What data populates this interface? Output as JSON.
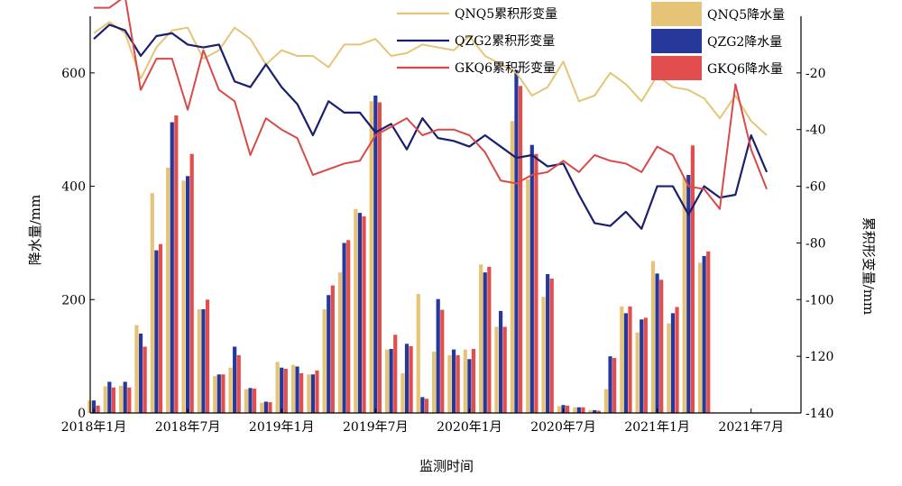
{
  "chart_data": {
    "type": "bar+line",
    "title": "",
    "xlabel": "监测时间",
    "ylabel_left": "降水量/mm",
    "ylabel_right": "累积形变量/mm",
    "ylim_left": [
      0,
      700
    ],
    "ylim_right": [
      -140,
      0
    ],
    "yticks_left": [
      0,
      200,
      400,
      600
    ],
    "yticks_right": [
      -140,
      -120,
      -100,
      -80,
      -60,
      -40,
      -20
    ],
    "x_tick_labels": [
      "2018年1月",
      "2018年7月",
      "2019年1月",
      "2019年7月",
      "2020年1月",
      "2020年7月",
      "2021年1月",
      "2021年7月"
    ],
    "x_tick_index": [
      0,
      6,
      12,
      18,
      24,
      30,
      36,
      42
    ],
    "months": 44,
    "grid": false,
    "legend_position": "top-right",
    "bar_series": [
      {
        "name": "QNQ5降水量",
        "color": "#E6C477",
        "values": [
          22,
          47,
          48,
          155,
          388,
          433,
          410,
          183,
          65,
          80,
          42,
          18,
          90,
          85,
          68,
          183,
          248,
          360,
          550,
          112,
          70,
          210,
          108,
          102,
          112,
          262,
          152,
          515,
          412,
          205,
          12,
          10,
          5,
          42,
          188,
          142,
          268,
          158,
          415,
          265,
          0,
          0,
          0,
          0
        ]
      },
      {
        "name": "QZG2降水量",
        "color": "#26389A",
        "values": [
          22,
          55,
          55,
          140,
          287,
          513,
          418,
          183,
          68,
          117,
          44,
          20,
          80,
          82,
          68,
          208,
          300,
          353,
          560,
          113,
          122,
          28,
          201,
          112,
          95,
          248,
          180,
          605,
          473,
          245,
          14,
          10,
          5,
          100,
          176,
          165,
          246,
          176,
          420,
          277,
          0,
          0,
          0,
          0
        ]
      },
      {
        "name": "GKQ6降水量",
        "color": "#E24E4E",
        "values": [
          13,
          45,
          45,
          117,
          298,
          525,
          457,
          200,
          68,
          102,
          43,
          19,
          78,
          70,
          75,
          225,
          305,
          347,
          548,
          138,
          118,
          25,
          182,
          102,
          113,
          258,
          152,
          577,
          457,
          237,
          13,
          10,
          4,
          97,
          188,
          168,
          235,
          187,
          472,
          285,
          0,
          0,
          0,
          0
        ]
      }
    ],
    "line_series": [
      {
        "name": "QNQ5累积形变量",
        "color": "#E6C477",
        "values": [
          -6,
          -2,
          -6,
          -22,
          -11,
          -5,
          -4,
          -15,
          -12,
          -4,
          -8,
          -17,
          -12,
          -14,
          -14,
          -18,
          -10,
          -10,
          -8,
          -14,
          -13,
          -10,
          -11,
          -12,
          -7,
          -14,
          -17,
          -20,
          -28,
          -25,
          -16,
          -30,
          -28,
          -20,
          -24,
          -30,
          -21,
          -25,
          -26,
          -29,
          -36,
          -28,
          -37,
          -42
        ]
      },
      {
        "name": "QZG2累积形变量",
        "color": "#1A1F6E",
        "values": [
          -8,
          -3,
          -5,
          -14,
          -7,
          -6,
          -10,
          -11,
          -10,
          -23,
          -25,
          -17,
          -25,
          -31,
          -42,
          -30,
          -34,
          -34,
          -41,
          -38,
          -47,
          -36,
          -43,
          -44,
          -46,
          -42,
          -46,
          -50,
          -49,
          -53,
          -52,
          -63,
          -73,
          -74,
          -69,
          -75,
          -60,
          -60,
          -70,
          -60,
          -64,
          -63,
          -42,
          -55
        ]
      },
      {
        "name": "GKQ6累积形变量",
        "color": "#D84A48",
        "values": [
          3,
          3,
          7,
          -26,
          -15,
          -15,
          -33,
          -12,
          -26,
          -30,
          -49,
          -36,
          -40,
          -43,
          -56,
          -54,
          -52,
          -51,
          -42,
          -39,
          -36,
          -42,
          -40,
          -40,
          -42,
          -48,
          -58,
          -59,
          -56,
          -55,
          -51,
          -55,
          -49,
          -51,
          -52,
          -55,
          -46,
          -49,
          -60,
          -61,
          -68,
          -24,
          -47,
          -61
        ]
      }
    ]
  }
}
